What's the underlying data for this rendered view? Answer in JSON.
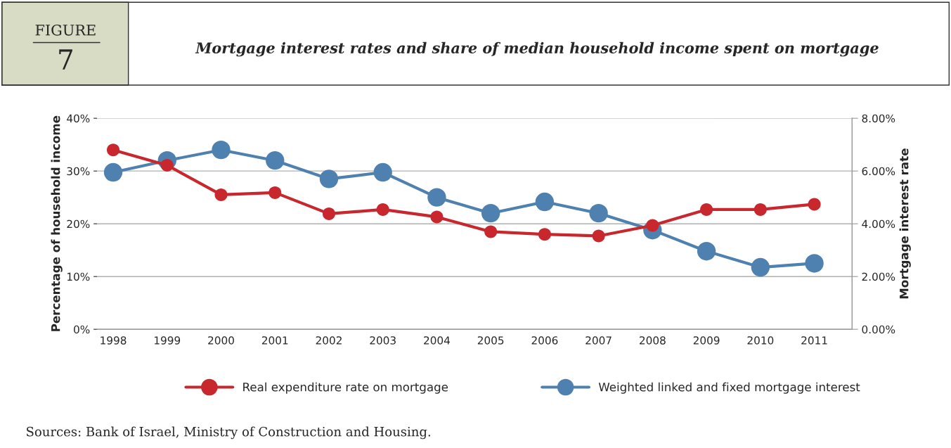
{
  "chart_data": {
    "type": "line",
    "title": "Mortgage interest rates and share of median household income spent on mortgage",
    "ylabel": "Percentage of household income",
    "y2label": "Mortgage interest rate",
    "annotations": [
      "FIGURE",
      "7",
      "Sources: Bank of Israel, Ministry of Construction and Housing."
    ],
    "categories": [
      "1998",
      "1999",
      "2000",
      "2001",
      "2002",
      "2003",
      "2004",
      "2005",
      "2006",
      "2007",
      "2008",
      "2009",
      "2010",
      "2011"
    ],
    "series": [
      {
        "name": "Real expenditure rate on mortgage",
        "color": "#c8282d",
        "values": [
          34.0,
          31.1,
          25.5,
          25.9,
          21.9,
          22.7,
          21.3,
          18.5,
          18.0,
          17.7,
          19.7,
          22.7,
          22.7,
          23.7
        ]
      },
      {
        "name": "Weighted linked and fixed mortgage interest",
        "color": "#4f81b0",
        "axis": "y2",
        "values": [
          5.95,
          6.4,
          6.8,
          6.4,
          5.7,
          5.95,
          5.0,
          4.4,
          4.83,
          4.4,
          3.76,
          2.96,
          2.35,
          2.5
        ]
      }
    ],
    "ylim": [
      0,
      40
    ],
    "yticks": [
      {
        "value": 0,
        "label": "0%"
      },
      {
        "value": 10,
        "label": "10%"
      },
      {
        "value": 20,
        "label": "20%"
      },
      {
        "value": 30,
        "label": "30%"
      },
      {
        "value": 40,
        "label": "40%"
      }
    ],
    "y2lim": [
      0,
      8
    ],
    "y2ticks": [
      {
        "value": 0,
        "label": "0.00%"
      },
      {
        "value": 2,
        "label": "2.00%"
      },
      {
        "value": 4,
        "label": "4.00%"
      },
      {
        "value": 6,
        "label": "6.00%"
      },
      {
        "value": 8,
        "label": "8.00%"
      }
    ],
    "grid": "y",
    "legend": "bottom",
    "marker": "circle",
    "line_style": "solid"
  }
}
